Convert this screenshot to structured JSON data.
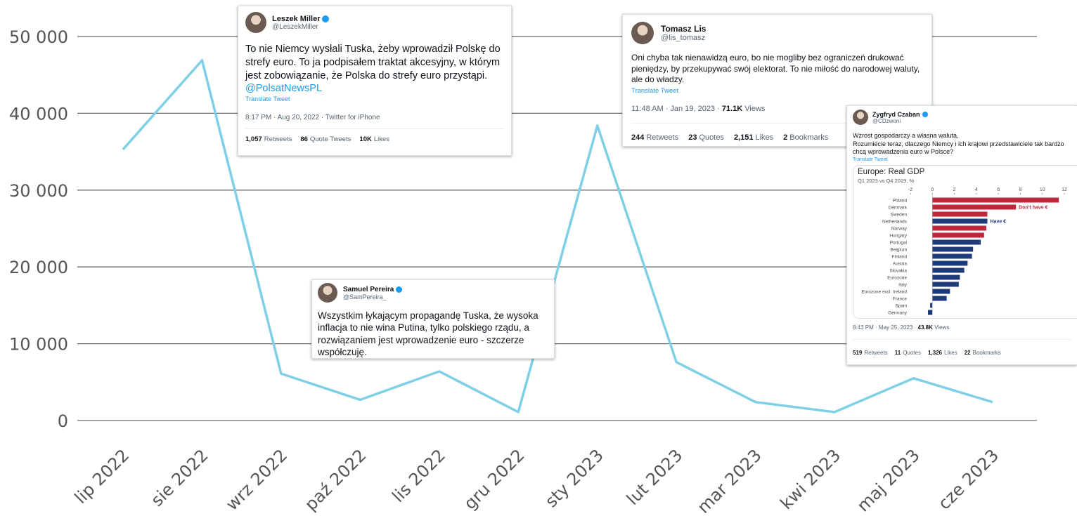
{
  "chart_data": [
    {
      "type": "line",
      "categories": [
        "lip 2022",
        "sie 2022",
        "wrz 2022",
        "paź 2022",
        "lis 2022",
        "gru 2022",
        "sty 2023",
        "lut 2023",
        "mar 2023",
        "kwi 2023",
        "maj 2023",
        "cze 2023"
      ],
      "series": [
        {
          "color": "#7fcfe6",
          "values": [
            35300,
            46900,
            6100,
            2700,
            6400,
            1100,
            38400,
            7600,
            2400,
            1100,
            5500,
            2400
          ]
        }
      ],
      "ylim": [
        0,
        50000
      ],
      "yticks": [
        {
          "value": 0,
          "label": "0"
        },
        {
          "value": 10000,
          "label": "10 000"
        },
        {
          "value": 20000,
          "label": "20 000"
        },
        {
          "value": 30000,
          "label": "30 000"
        },
        {
          "value": 40000,
          "label": "40 000"
        },
        {
          "value": 50000,
          "label": "50 000"
        }
      ],
      "grid": true
    },
    {
      "type": "barh",
      "title": "Europe: Real GDP",
      "subtitle": "Q1 2023 vs Q4 2019, %",
      "categories": [
        "Poland",
        "Denmark",
        "Sweden",
        "Netherlands",
        "Norway",
        "Hungary",
        "Portugal",
        "Belgium",
        "Finland",
        "Austria",
        "Slovakia",
        "Eurozone",
        "Italy",
        "Eurozone excl. Ireland",
        "France",
        "Spain",
        "Germany"
      ],
      "values": [
        11.5,
        7.6,
        5.0,
        5.0,
        4.9,
        4.7,
        4.4,
        3.7,
        3.6,
        3.2,
        2.9,
        2.5,
        2.4,
        1.6,
        1.3,
        -0.2,
        -0.4
      ],
      "colors": [
        "#c0263a",
        "#c0263a",
        "#c0263a",
        "#1f3a78",
        "#c0263a",
        "#c0263a",
        "#1f3a78",
        "#1f3a78",
        "#1f3a78",
        "#1f3a78",
        "#1f3a78",
        "#1f3a78",
        "#1f3a78",
        "#1f3a78",
        "#1f3a78",
        "#1f3a78",
        "#1f3a78"
      ],
      "xlim": [
        -2,
        12
      ],
      "xticks": [
        -2,
        0,
        2,
        4,
        6,
        8,
        10,
        12
      ],
      "annotations": [
        "Don't have €",
        "Have €"
      ]
    }
  ],
  "tweets": [
    {
      "name": "Leszek Miller",
      "handle": "@LeszekMiller",
      "text": "To nie Niemcy wysłali Tuska, żeby wprowadził Polskę do strefy euro. To ja podpisałem traktat akcesyjny, w którym jest zobowiązanie, że Polska do strefy euro przystąpi.",
      "link": "@PolsatNewsPL",
      "translate": "Translate Tweet",
      "meta": "8:17 PM · Aug 20, 2022 · Twitter for iPhone",
      "stats": [
        {
          "count": "1,057",
          "label": "Retweets"
        },
        {
          "count": "86",
          "label": "Quote Tweets"
        },
        {
          "count": "10K",
          "label": "Likes"
        }
      ]
    },
    {
      "name": "Tomasz Lis",
      "handle": "@lis_tomasz",
      "text": "Oni chyba tak nienawidzą euro, bo nie mogliby bez ograniczeń drukować pieniędzy, by przekupywać swój elektorat. To nie miłość do narodowej waluty, ale do władzy.",
      "translate": "Translate Tweet",
      "meta": "11:48 AM · Jan 19, 2023 ·",
      "views": {
        "count": "71.1K",
        "label": "Views"
      },
      "stats": [
        {
          "count": "244",
          "label": "Retweets"
        },
        {
          "count": "23",
          "label": "Quotes"
        },
        {
          "count": "2,151",
          "label": "Likes"
        },
        {
          "count": "2",
          "label": "Bookmarks"
        }
      ]
    },
    {
      "name": "Zygfryd Czaban",
      "handle": "@CDzwoni",
      "text": "Wzrost gospodarczy a własna waluta.\nRozumiecie teraz, dlaczego Niemcy i ich krajowi przedstawiciele tak bardzo chcą wprowadzenia euro w Polsce?",
      "translate": "Translate Tweet",
      "meta": "8:43 PM · May 25, 2023 ·",
      "views": {
        "count": "43.8K",
        "label": "Views"
      },
      "stats": [
        {
          "count": "519",
          "label": "Retweets"
        },
        {
          "count": "11",
          "label": "Quotes"
        },
        {
          "count": "1,326",
          "label": "Likes"
        },
        {
          "count": "22",
          "label": "Bookmarks"
        }
      ]
    },
    {
      "name": "Samuel Pereira",
      "handle": "@SamPereira_",
      "text": "Wszystkim łykającym propagandę Tuska, że wysoka inflacja to nie wina Putina, tylko polskiego rządu, a rozwiązaniem jest wprowadzenie euro - szczerze współczuję."
    }
  ]
}
